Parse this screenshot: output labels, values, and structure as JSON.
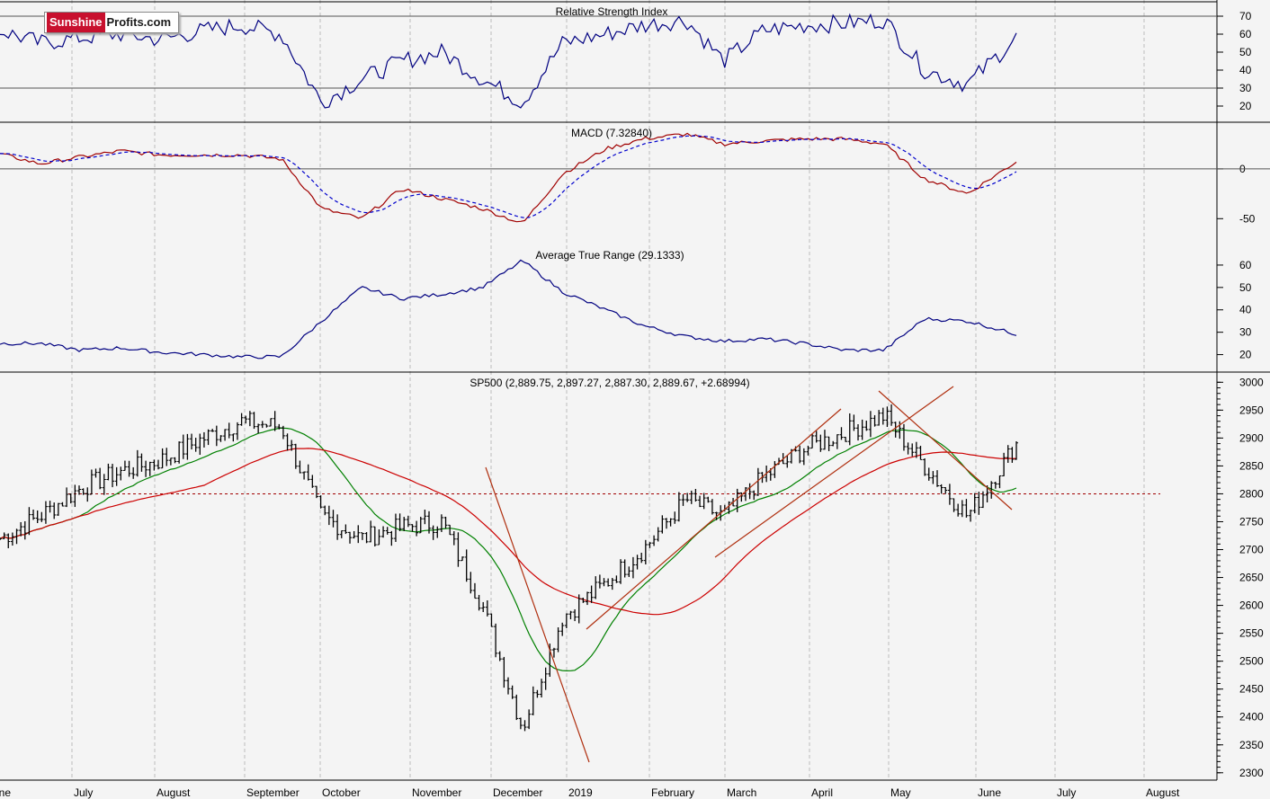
{
  "logo": {
    "part1": "Sunshine",
    "part2": "Profits.com"
  },
  "x_labels": [
    "June",
    "July",
    "August",
    "September",
    "October",
    "November",
    "December",
    "2019",
    "February",
    "March",
    "April",
    "May",
    "June",
    "July",
    "August"
  ],
  "rsi": {
    "title": "Relative Strength Index",
    "ticks": [
      70,
      60,
      50,
      40,
      30,
      20
    ],
    "ylim": [
      12,
      76
    ],
    "ref_lines": [
      70,
      30
    ]
  },
  "macd": {
    "title": "MACD (7.32840)",
    "ticks": [
      0,
      -50
    ],
    "ylim": [
      -75,
      45
    ],
    "ref_lines": [
      0
    ]
  },
  "atr": {
    "title": "Average True Range (29.1333)",
    "ticks": [
      60,
      50,
      40,
      30,
      20
    ],
    "ylim": [
      13,
      68
    ]
  },
  "price": {
    "title": "SP500 (2,889.75, 2,897.27, 2,887.30, 2,889.67, +2.68994)",
    "ticks": [
      3000,
      2950,
      2900,
      2850,
      2800,
      2750,
      2700,
      2650,
      2600,
      2550,
      2500,
      2450,
      2400,
      2350,
      2300
    ],
    "ylim": [
      2290,
      3015
    ],
    "support_level": 2800
  },
  "colors": {
    "background": "#f4f4f4",
    "rsi_line": "#000080",
    "macd_line": "#a00000",
    "macd_signal": "#0000cc",
    "atr_line": "#000080",
    "bars": "#000000",
    "ma50": "#008000",
    "ma200": "#cc0000",
    "trend_lines": "#b03010",
    "support_line": "#a00000"
  },
  "chart_data": {
    "type": "line",
    "x": [
      "2018-06-25",
      "2018-07-09",
      "2018-07-23",
      "2018-08-06",
      "2018-08-20",
      "2018-09-04",
      "2018-09-17",
      "2018-10-01",
      "2018-10-15",
      "2018-10-29",
      "2018-11-12",
      "2018-11-26",
      "2018-12-10",
      "2018-12-24",
      "2019-01-07",
      "2019-01-22",
      "2019-02-04",
      "2019-02-19",
      "2019-03-04",
      "2019-03-18",
      "2019-04-01",
      "2019-04-15",
      "2019-04-29",
      "2019-05-13",
      "2019-05-28",
      "2019-06-14"
    ],
    "series": [
      {
        "name": "SP500",
        "values": [
          2720,
          2760,
          2810,
          2840,
          2860,
          2900,
          2930,
          2920,
          2760,
          2720,
          2740,
          2750,
          2600,
          2380,
          2580,
          2640,
          2700,
          2790,
          2760,
          2830,
          2880,
          2910,
          2940,
          2850,
          2760,
          2890
        ]
      },
      {
        "name": "RSI",
        "values": [
          62,
          55,
          58,
          60,
          57,
          62,
          65,
          60,
          22,
          35,
          45,
          50,
          35,
          22,
          55,
          60,
          65,
          68,
          45,
          62,
          65,
          66,
          68,
          40,
          32,
          58
        ]
      },
      {
        "name": "MACD",
        "values": [
          15,
          5,
          12,
          18,
          14,
          14,
          14,
          10,
          -40,
          -50,
          -20,
          -30,
          -40,
          -55,
          -5,
          20,
          30,
          35,
          25,
          28,
          30,
          30,
          25,
          -10,
          -25,
          7.3
        ]
      },
      {
        "name": "ATR",
        "values": [
          25,
          25,
          22,
          23,
          21,
          20,
          19,
          19,
          35,
          50,
          45,
          47,
          50,
          62,
          48,
          40,
          33,
          28,
          26,
          27,
          25,
          22,
          22,
          36,
          35,
          29.1
        ]
      }
    ]
  }
}
